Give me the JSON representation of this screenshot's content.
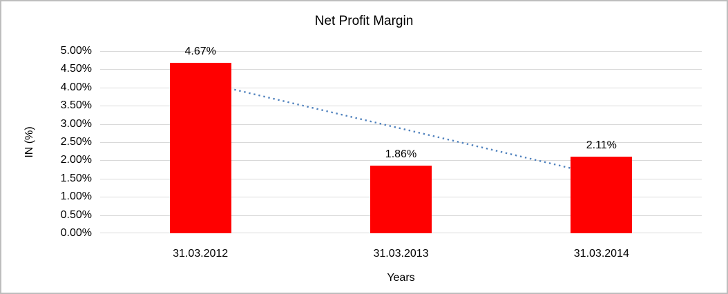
{
  "window": {
    "background_color": "#ffffff",
    "frame_border_color": "#bdbdbd"
  },
  "chart_data": {
    "type": "bar",
    "title": "Net Profit Margin",
    "xlabel": "Years",
    "ylabel": "IN (%)",
    "categories": [
      "31.03.2012",
      "31.03.2013",
      "31.03.2014"
    ],
    "values": [
      4.67,
      1.86,
      2.11
    ],
    "data_labels": [
      "4.67%",
      "1.86%",
      "2.11%"
    ],
    "series_name": "Net Profit Margin",
    "ylim": [
      0,
      5
    ],
    "y_tick_step": 0.5,
    "y_tick_labels": [
      "0.00%",
      "0.50%",
      "1.00%",
      "1.50%",
      "2.00%",
      "2.50%",
      "3.00%",
      "3.50%",
      "4.00%",
      "4.50%",
      "5.00%"
    ],
    "grid": true,
    "legend_position": "none",
    "bar_color": "#ff0000",
    "gridline_color": "#d9d9d9",
    "text_color": "#000000",
    "trendline": {
      "type": "linear",
      "style": "dotted",
      "color": "#4f81bd",
      "start_category_index": 0,
      "start_value": 4.16,
      "end_category_index": 2,
      "end_value": 1.59
    }
  }
}
